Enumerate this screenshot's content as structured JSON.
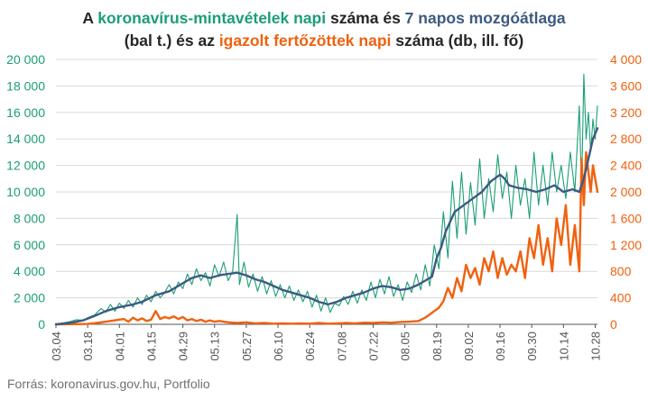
{
  "title": {
    "part1": "A ",
    "tests": "koronavírus-mintavételek napi",
    "part2": " száma és ",
    "avg": "7 napos mozgóátlaga",
    "part3": "(bal t.) és az ",
    "cases": "igazolt fertőzöttek napi",
    "part4": " száma (db, ill. fő)"
  },
  "source": "Forrás: koronavirus.gov.hu, Portfolio",
  "colors": {
    "tests": "#1b9e77",
    "avg": "#3d5a80",
    "cases": "#f0610f",
    "grid": "#d9d9d9",
    "xaxis": "#555555"
  },
  "chart_data": {
    "type": "line",
    "x_tick_labels": [
      "03.04",
      "03.18",
      "04.01",
      "04.15",
      "04.29",
      "05.13",
      "05.27",
      "06.10",
      "06.24",
      "07.08",
      "07.22",
      "08.05",
      "08.19",
      "09.02",
      "09.16",
      "09.30",
      "10.14",
      "10.28"
    ],
    "left_axis": {
      "min": 0,
      "max": 20000,
      "ticks": [
        "0",
        "2 000",
        "4 000",
        "6 000",
        "8 000",
        "10 000",
        "12 000",
        "14 000",
        "16 000",
        "18 000",
        "20 000"
      ]
    },
    "right_axis": {
      "min": 0,
      "max": 4000,
      "ticks": [
        "0",
        "400",
        "800",
        "1 200",
        "1 600",
        "2 000",
        "2 400",
        "2 800",
        "3 200",
        "3 600",
        "4 000"
      ]
    },
    "series": [
      {
        "key": "tests",
        "axis": "left",
        "points": [
          [
            0,
            0
          ],
          [
            3,
            100
          ],
          [
            6,
            200
          ],
          [
            9,
            350
          ],
          [
            12,
            300
          ],
          [
            14,
            500
          ],
          [
            17,
            700
          ],
          [
            20,
            1200
          ],
          [
            22,
            900
          ],
          [
            24,
            1500
          ],
          [
            26,
            1000
          ],
          [
            28,
            1600
          ],
          [
            30,
            1200
          ],
          [
            32,
            1800
          ],
          [
            34,
            1300
          ],
          [
            36,
            2000
          ],
          [
            38,
            1500
          ],
          [
            40,
            2200
          ],
          [
            42,
            1700
          ],
          [
            44,
            2500
          ],
          [
            46,
            2000
          ],
          [
            48,
            2400
          ],
          [
            50,
            3000
          ],
          [
            52,
            2300
          ],
          [
            54,
            3200
          ],
          [
            56,
            2700
          ],
          [
            58,
            3800
          ],
          [
            60,
            3000
          ],
          [
            62,
            4200
          ],
          [
            64,
            3300
          ],
          [
            66,
            3900
          ],
          [
            68,
            2900
          ],
          [
            70,
            4500
          ],
          [
            72,
            3600
          ],
          [
            74,
            4700
          ],
          [
            76,
            3300
          ],
          [
            78,
            4000
          ],
          [
            80,
            8300
          ],
          [
            81,
            3000
          ],
          [
            83,
            4700
          ],
          [
            85,
            2800
          ],
          [
            87,
            3800
          ],
          [
            89,
            2500
          ],
          [
            91,
            3600
          ],
          [
            93,
            2300
          ],
          [
            95,
            3300
          ],
          [
            97,
            2100
          ],
          [
            99,
            3000
          ],
          [
            101,
            2000
          ],
          [
            103,
            2900
          ],
          [
            105,
            1800
          ],
          [
            107,
            2600
          ],
          [
            109,
            1700
          ],
          [
            111,
            2500
          ],
          [
            113,
            1300
          ],
          [
            115,
            2200
          ],
          [
            117,
            1000
          ],
          [
            119,
            2000
          ],
          [
            121,
            900
          ],
          [
            123,
            1600
          ],
          [
            125,
            1400
          ],
          [
            127,
            2100
          ],
          [
            129,
            1500
          ],
          [
            131,
            2500
          ],
          [
            133,
            1600
          ],
          [
            135,
            2600
          ],
          [
            137,
            1800
          ],
          [
            139,
            3200
          ],
          [
            141,
            2000
          ],
          [
            143,
            3400
          ],
          [
            145,
            2300
          ],
          [
            147,
            3600
          ],
          [
            149,
            2100
          ],
          [
            151,
            3000
          ],
          [
            153,
            1800
          ],
          [
            155,
            3200
          ],
          [
            157,
            2400
          ],
          [
            159,
            3800
          ],
          [
            161,
            2600
          ],
          [
            163,
            4500
          ],
          [
            165,
            2900
          ],
          [
            167,
            6000
          ],
          [
            169,
            4200
          ],
          [
            171,
            8500
          ],
          [
            173,
            5000
          ],
          [
            175,
            10800
          ],
          [
            177,
            6500
          ],
          [
            179,
            11500
          ],
          [
            181,
            6800
          ],
          [
            183,
            10700
          ],
          [
            185,
            7500
          ],
          [
            187,
            12500
          ],
          [
            189,
            8000
          ],
          [
            191,
            11000
          ],
          [
            193,
            8500
          ],
          [
            195,
            12800
          ],
          [
            197,
            9500
          ],
          [
            199,
            11500
          ],
          [
            201,
            8000
          ],
          [
            203,
            12000
          ],
          [
            205,
            9000
          ],
          [
            207,
            11000
          ],
          [
            209,
            8000
          ],
          [
            211,
            13000
          ],
          [
            213,
            9000
          ],
          [
            215,
            12000
          ],
          [
            217,
            9000
          ],
          [
            219,
            13000
          ],
          [
            221,
            10000
          ],
          [
            223,
            12000
          ],
          [
            225,
            9500
          ],
          [
            227,
            13000
          ],
          [
            229,
            10000
          ],
          [
            231,
            16500
          ],
          [
            232,
            10000
          ],
          [
            233,
            18900
          ],
          [
            234,
            14000
          ],
          [
            235,
            16000
          ],
          [
            236,
            13000
          ],
          [
            237,
            15500
          ],
          [
            238,
            14000
          ],
          [
            239,
            16500
          ]
        ]
      },
      {
        "key": "avg",
        "axis": "left",
        "points": [
          [
            0,
            0
          ],
          [
            6,
            100
          ],
          [
            12,
            300
          ],
          [
            18,
            700
          ],
          [
            22,
            1000
          ],
          [
            28,
            1300
          ],
          [
            34,
            1500
          ],
          [
            38,
            1700
          ],
          [
            44,
            2200
          ],
          [
            50,
            2500
          ],
          [
            56,
            3100
          ],
          [
            60,
            3500
          ],
          [
            64,
            3700
          ],
          [
            68,
            3500
          ],
          [
            72,
            3700
          ],
          [
            76,
            3800
          ],
          [
            80,
            3900
          ],
          [
            84,
            3700
          ],
          [
            88,
            3400
          ],
          [
            92,
            3200
          ],
          [
            96,
            2900
          ],
          [
            100,
            2600
          ],
          [
            104,
            2400
          ],
          [
            108,
            2200
          ],
          [
            112,
            2000
          ],
          [
            116,
            1700
          ],
          [
            120,
            1500
          ],
          [
            124,
            1700
          ],
          [
            128,
            2000
          ],
          [
            132,
            2200
          ],
          [
            136,
            2400
          ],
          [
            140,
            2700
          ],
          [
            144,
            2900
          ],
          [
            148,
            2800
          ],
          [
            152,
            2600
          ],
          [
            156,
            2700
          ],
          [
            160,
            3000
          ],
          [
            164,
            3400
          ],
          [
            166,
            3600
          ],
          [
            168,
            5000
          ],
          [
            170,
            5800
          ],
          [
            172,
            7000
          ],
          [
            176,
            8500
          ],
          [
            180,
            9000
          ],
          [
            184,
            9500
          ],
          [
            188,
            10000
          ],
          [
            192,
            10800
          ],
          [
            196,
            11300
          ],
          [
            198,
            11000
          ],
          [
            200,
            10500
          ],
          [
            204,
            10300
          ],
          [
            208,
            10200
          ],
          [
            212,
            10000
          ],
          [
            216,
            10200
          ],
          [
            220,
            10500
          ],
          [
            224,
            10000
          ],
          [
            228,
            10200
          ],
          [
            231,
            10000
          ],
          [
            233,
            11000
          ],
          [
            235,
            12500
          ],
          [
            237,
            14000
          ],
          [
            239,
            14800
          ]
        ]
      },
      {
        "key": "cases",
        "axis": "right",
        "points": [
          [
            0,
            0
          ],
          [
            14,
            5
          ],
          [
            18,
            20
          ],
          [
            22,
            40
          ],
          [
            26,
            60
          ],
          [
            30,
            80
          ],
          [
            32,
            40
          ],
          [
            34,
            100
          ],
          [
            36,
            60
          ],
          [
            38,
            90
          ],
          [
            40,
            50
          ],
          [
            42,
            70
          ],
          [
            44,
            200
          ],
          [
            46,
            80
          ],
          [
            48,
            110
          ],
          [
            50,
            90
          ],
          [
            52,
            120
          ],
          [
            54,
            80
          ],
          [
            56,
            110
          ],
          [
            58,
            60
          ],
          [
            60,
            80
          ],
          [
            62,
            50
          ],
          [
            64,
            70
          ],
          [
            66,
            40
          ],
          [
            68,
            60
          ],
          [
            70,
            40
          ],
          [
            72,
            50
          ],
          [
            76,
            30
          ],
          [
            80,
            20
          ],
          [
            84,
            30
          ],
          [
            88,
            15
          ],
          [
            92,
            20
          ],
          [
            96,
            10
          ],
          [
            100,
            15
          ],
          [
            104,
            10
          ],
          [
            108,
            15
          ],
          [
            112,
            10
          ],
          [
            116,
            20
          ],
          [
            120,
            10
          ],
          [
            124,
            15
          ],
          [
            128,
            20
          ],
          [
            132,
            15
          ],
          [
            136,
            25
          ],
          [
            140,
            20
          ],
          [
            144,
            30
          ],
          [
            148,
            25
          ],
          [
            152,
            35
          ],
          [
            156,
            40
          ],
          [
            160,
            50
          ],
          [
            163,
            100
          ],
          [
            165,
            150
          ],
          [
            167,
            200
          ],
          [
            169,
            250
          ],
          [
            171,
            350
          ],
          [
            173,
            550
          ],
          [
            175,
            400
          ],
          [
            177,
            700
          ],
          [
            179,
            500
          ],
          [
            181,
            900
          ],
          [
            183,
            700
          ],
          [
            185,
            850
          ],
          [
            187,
            600
          ],
          [
            189,
            1000
          ],
          [
            191,
            800
          ],
          [
            193,
            1100
          ],
          [
            195,
            700
          ],
          [
            197,
            1000
          ],
          [
            199,
            750
          ],
          [
            201,
            900
          ],
          [
            203,
            800
          ],
          [
            205,
            1100
          ],
          [
            207,
            700
          ],
          [
            209,
            1300
          ],
          [
            211,
            1000
          ],
          [
            213,
            1500
          ],
          [
            215,
            900
          ],
          [
            217,
            1300
          ],
          [
            219,
            800
          ],
          [
            221,
            1600
          ],
          [
            223,
            1200
          ],
          [
            225,
            1800
          ],
          [
            227,
            900
          ],
          [
            229,
            1500
          ],
          [
            231,
            800
          ],
          [
            232,
            2500
          ],
          [
            233,
            1800
          ],
          [
            234,
            2600
          ],
          [
            235,
            2300
          ],
          [
            236,
            2000
          ],
          [
            237,
            2400
          ],
          [
            238,
            2200
          ],
          [
            239,
            2000
          ]
        ]
      }
    ]
  }
}
